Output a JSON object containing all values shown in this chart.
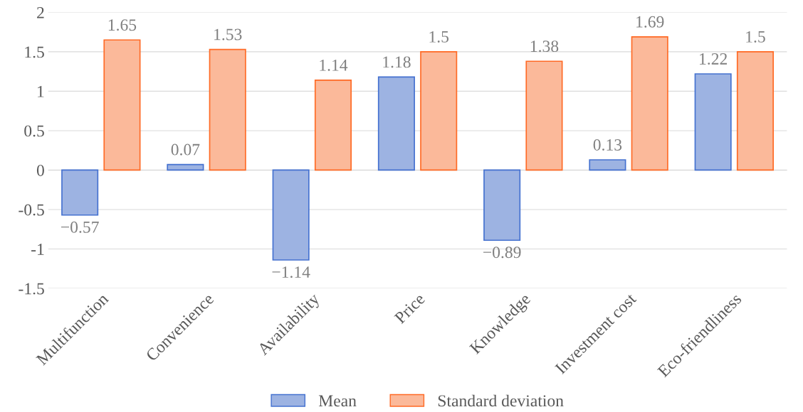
{
  "chart_data": {
    "type": "bar",
    "categories": [
      "Multifunction",
      "Convenience",
      "Availability",
      "Price",
      "Knowledge",
      "Investment cost",
      "Eco-friendliness"
    ],
    "series": [
      {
        "name": "Mean",
        "color": "#9db3e2",
        "values": [
          -0.57,
          0.07,
          -1.14,
          1.18,
          -0.89,
          0.13,
          1.22
        ],
        "value_labels": [
          "−0.57",
          "0.07",
          "−1.14",
          "1.18",
          "−0.89",
          "0.13",
          "1.22"
        ]
      },
      {
        "name": "Standard deviation",
        "color": "#fbb99a",
        "values": [
          1.65,
          1.53,
          1.14,
          1.5,
          1.38,
          1.69,
          1.5
        ],
        "value_labels": [
          "1.65",
          "1.53",
          "1.14",
          "1.5",
          "1.38",
          "1.69",
          "1.5"
        ]
      }
    ],
    "ylim": [
      -1.5,
      2
    ],
    "yticks": [
      {
        "value": -1.5,
        "label": "-1.5"
      },
      {
        "value": -1,
        "label": "-1"
      },
      {
        "value": -0.5,
        "label": "-0.5"
      },
      0,
      0.5,
      1,
      1.5,
      2
    ],
    "grid": "y",
    "legend": "bottom"
  }
}
